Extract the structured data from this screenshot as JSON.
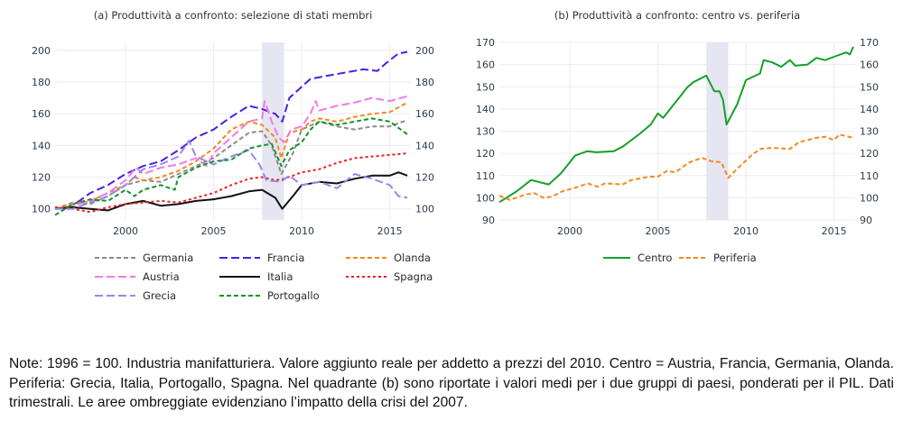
{
  "chart_data": [
    {
      "type": "line",
      "title": "(a) Produttività a confronto: selezione di stati membri",
      "xlabel": "",
      "ylabel": "",
      "xlim": [
        1996,
        2016.2
      ],
      "ylim": [
        93,
        205
      ],
      "x_ticks": [
        2000,
        2005,
        2010,
        2015
      ],
      "y_ticks": [
        100,
        120,
        140,
        160,
        180,
        200
      ],
      "y_axis_mirrored_right": true,
      "grid": true,
      "shaded_region": {
        "x_start": 2007.75,
        "x_end": 2009.0,
        "label": "crisi del 2007",
        "color": "#e6e6f2"
      },
      "legend_position": "bottom",
      "series": [
        {
          "name": "Germania",
          "color": "#8c8c8c",
          "dash": "dash",
          "x": [
            1996,
            1997,
            1998,
            1999,
            2000,
            2001,
            2002,
            2003,
            2004,
            2005,
            2006,
            2007,
            2007.75,
            2008.3,
            2008.85,
            2009.5,
            2010,
            2011,
            2012,
            2013,
            2014,
            2015,
            2016
          ],
          "y": [
            100,
            104,
            103,
            108,
            115,
            118,
            117,
            122,
            127,
            132,
            140,
            148,
            149,
            140,
            122,
            135,
            150,
            155,
            152,
            150,
            152,
            152,
            156
          ]
        },
        {
          "name": "Francia",
          "color": "#4b1ee6",
          "dash": "longdash",
          "x": [
            1996,
            1997,
            1998,
            1999,
            2000,
            2001,
            2002,
            2003,
            2004,
            2005,
            2006,
            2007,
            2007.75,
            2008.5,
            2008.9,
            2009.3,
            2010,
            2010.5,
            2011.5,
            2012.5,
            2013.5,
            2014.3,
            2014.8,
            2015.5,
            2016
          ],
          "y": [
            100,
            102,
            110,
            115,
            122,
            127,
            130,
            137,
            145,
            150,
            158,
            165,
            163,
            160,
            155,
            170,
            177,
            182,
            184,
            186,
            188,
            187,
            192,
            198,
            199
          ]
        },
        {
          "name": "Olanda",
          "color": "#f28a1e",
          "dash": "dash",
          "x": [
            1996,
            1997,
            1998,
            1999,
            2000,
            2000.5,
            2001,
            2002,
            2003,
            2004,
            2005,
            2006,
            2007,
            2007.75,
            2008.5,
            2008.85,
            2009.3,
            2010,
            2010.5,
            2011,
            2012,
            2013,
            2014,
            2015,
            2016
          ],
          "y": [
            100,
            103,
            105,
            110,
            115,
            120,
            118,
            120,
            124,
            130,
            138,
            150,
            155,
            153,
            145,
            132,
            148,
            150,
            155,
            157,
            155,
            158,
            160,
            161,
            167
          ]
        },
        {
          "name": "Austria",
          "color": "#f27ae6",
          "dash": "longdash",
          "x": [
            1996,
            1997,
            1998,
            1999,
            2000,
            2000.6,
            2001,
            2002,
            2003,
            2004,
            2004.6,
            2005,
            2006,
            2007,
            2007.75,
            2007.9,
            2008.3,
            2008.7,
            2009.0,
            2009.4,
            2010,
            2010.5,
            2010.8,
            2011,
            2012,
            2013,
            2014,
            2015,
            2016
          ],
          "y": [
            100,
            102,
            105,
            110,
            118,
            126,
            122,
            126,
            128,
            132,
            127,
            135,
            145,
            155,
            157,
            168,
            155,
            145,
            142,
            150,
            152,
            160,
            168,
            162,
            165,
            167,
            170,
            168,
            171
          ]
        },
        {
          "name": "Italia",
          "color": "#111111",
          "dash": "solid",
          "x": [
            1996,
            1997,
            1998,
            1999,
            2000,
            2001,
            2002,
            2003,
            2004,
            2005,
            2006,
            2007,
            2007.75,
            2008.5,
            2008.9,
            2009.5,
            2010,
            2011,
            2012,
            2013,
            2014,
            2015,
            2015.5,
            2016
          ],
          "y": [
            100,
            101,
            100,
            99,
            103,
            105,
            102,
            103,
            105,
            106,
            108,
            111,
            112,
            107,
            100,
            108,
            115,
            117,
            116,
            119,
            121,
            121,
            123,
            121
          ]
        },
        {
          "name": "Spagna",
          "color": "#f01e1e",
          "dash": "dot",
          "x": [
            1996,
            1997,
            1998,
            1999,
            2000,
            2001,
            2002,
            2003,
            2004,
            2005,
            2006,
            2007,
            2007.75,
            2008.5,
            2009,
            2010,
            2011,
            2012,
            2013,
            2014,
            2015,
            2016
          ],
          "y": [
            101,
            100,
            98,
            101,
            103,
            104,
            105,
            104,
            107,
            110,
            115,
            119,
            120,
            118,
            119,
            123,
            125,
            129,
            132,
            133,
            134,
            135
          ]
        },
        {
          "name": "Grecia",
          "color": "#9488f0",
          "dash": "longdash",
          "x": [
            1996,
            1997,
            1998,
            1999,
            2000,
            2001,
            2002,
            2003,
            2003.6,
            2004,
            2005,
            2006,
            2007,
            2007.6,
            2008,
            2008.8,
            2009.3,
            2010,
            2011,
            2012,
            2013,
            2014,
            2015,
            2015.5,
            2016
          ],
          "y": [
            100,
            100,
            104,
            108,
            115,
            125,
            128,
            133,
            143,
            133,
            128,
            133,
            137,
            128,
            118,
            117,
            121,
            115,
            117,
            113,
            122,
            119,
            115,
            108,
            107
          ]
        },
        {
          "name": "Portogallo",
          "color": "#16922a",
          "dash": "dash",
          "x": [
            1996,
            1997,
            1998,
            1999,
            2000,
            2000.5,
            2001,
            2002,
            2002.8,
            2003,
            2004,
            2005,
            2006,
            2007,
            2007.75,
            2008.3,
            2008.85,
            2009.3,
            2010,
            2010.5,
            2011,
            2012,
            2013,
            2014,
            2015,
            2016
          ],
          "y": [
            96,
            103,
            106,
            105,
            112,
            108,
            112,
            115,
            112,
            120,
            126,
            130,
            131,
            138,
            140,
            141,
            127,
            137,
            142,
            150,
            155,
            153,
            155,
            157,
            155,
            147
          ]
        }
      ]
    },
    {
      "type": "line",
      "title": "(b) Produttività a confronto: centro vs. periferia",
      "xlabel": "",
      "ylabel": "",
      "xlim": [
        1996,
        2016.2
      ],
      "ylim": [
        90,
        170
      ],
      "x_ticks": [
        2000,
        2005,
        2010,
        2015
      ],
      "y_ticks": [
        90,
        100,
        110,
        120,
        130,
        140,
        150,
        160,
        170
      ],
      "y_axis_mirrored_right": true,
      "grid": true,
      "shaded_region": {
        "x_start": 2007.75,
        "x_end": 2009.0,
        "label": "crisi del 2007",
        "color": "#e6e6f2"
      },
      "legend_position": "bottom",
      "series": [
        {
          "name": "Centro",
          "color": "#16a02a",
          "dash": "solid",
          "x": [
            1996,
            1997,
            1997.8,
            1998.8,
            1999.5,
            2000.3,
            2001,
            2001.5,
            2002.5,
            2003,
            2004,
            2004.6,
            2005,
            2005.3,
            2006,
            2006.7,
            2007,
            2007.75,
            2008.2,
            2008.5,
            2008.7,
            2008.9,
            2009.5,
            2010,
            2010.8,
            2011,
            2011.5,
            2012,
            2012.5,
            2012.8,
            2013.5,
            2014,
            2014.5,
            2015,
            2015.7,
            2015.9,
            2016.1
          ],
          "y": [
            98,
            103,
            108,
            106,
            111,
            119,
            121,
            120.5,
            121,
            123,
            129,
            133,
            138,
            136,
            143,
            150,
            152,
            155,
            148,
            148,
            144,
            133,
            142,
            153,
            156,
            162,
            161,
            159,
            162,
            159.5,
            160,
            163,
            162,
            163.5,
            165.5,
            164.5,
            168
          ]
        },
        {
          "name": "Periferia",
          "color": "#f28a1e",
          "dash": "dash",
          "x": [
            1996,
            1996.6,
            1997.5,
            1998,
            1998.5,
            1999,
            1999.6,
            2000.5,
            2001,
            2001.6,
            2002,
            2003,
            2003.5,
            2004.5,
            2005,
            2005.5,
            2006,
            2006.8,
            2007.5,
            2008,
            2008.6,
            2009,
            2009.5,
            2010.3,
            2010.8,
            2011.5,
            2012.5,
            2013,
            2014,
            2014.5,
            2015,
            2015.3,
            2016.1
          ],
          "y": [
            101,
            99,
            101.5,
            102,
            100,
            100.5,
            103,
            105,
            106.5,
            105,
            106.5,
            106,
            108,
            109.5,
            109.5,
            112,
            111.5,
            116,
            118,
            116.5,
            116,
            109,
            113,
            119,
            122,
            122.5,
            122,
            125,
            127,
            127.5,
            126,
            128.5,
            127
          ]
        }
      ]
    }
  ],
  "note": "Note: 1996 = 100. Industria manifatturiera. Valore aggiunto reale per addetto a prezzi del 2010. Centro = Austria, Francia, Germania, Olanda. Periferia: Grecia, Italia, Portogallo, Spagna. Nel quadrante (b) sono riportate i valori medi per i due gruppi di paesi, ponderati per il PIL. Dati trimestrali. Le aree ombreggiate evidenziano l’impatto della crisi del 2007."
}
